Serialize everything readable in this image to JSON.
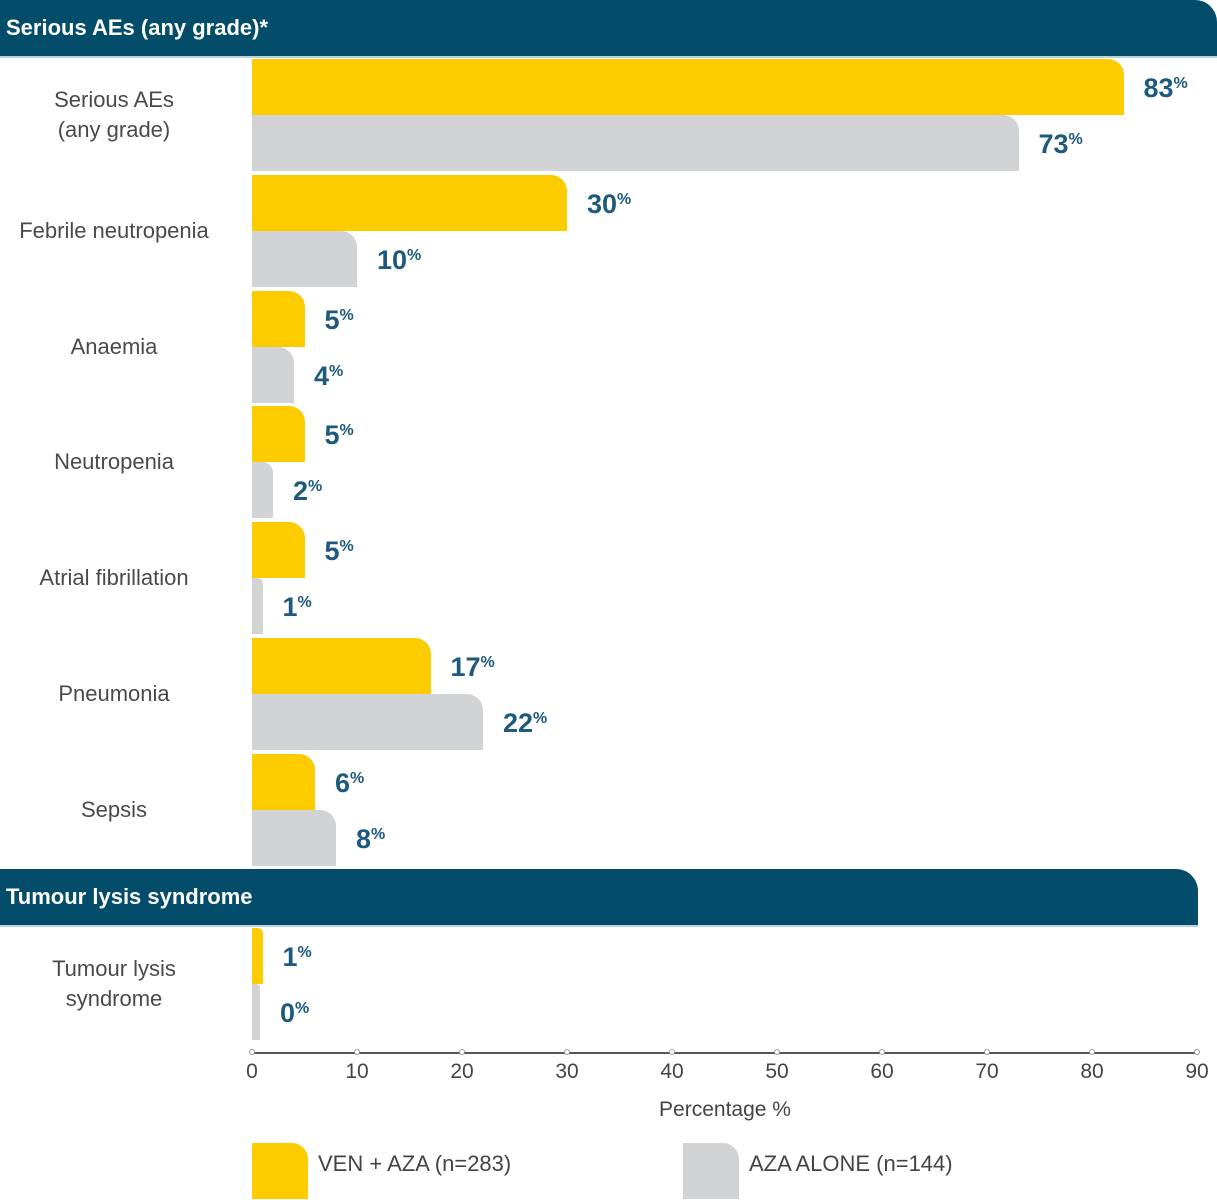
{
  "chart_data": {
    "type": "bar",
    "orientation": "horizontal",
    "xlabel": "Percentage %",
    "xlim": [
      0,
      90
    ],
    "xticks": [
      0,
      10,
      20,
      30,
      40,
      50,
      60,
      70,
      80,
      90
    ],
    "sections": [
      {
        "title": "Serious AEs (any grade)*",
        "categories": [
          "Serious AEs\n(any grade)",
          "Febrile neutropenia",
          "Anaemia",
          "Neutropenia",
          "Atrial fibrillation",
          "Pneumonia",
          "Sepsis"
        ],
        "series": [
          {
            "name": "VEN + AZA (n=283)",
            "values": [
              83,
              30,
              5,
              5,
              5,
              17,
              6
            ]
          },
          {
            "name": "AZA ALONE (n=144)",
            "values": [
              73,
              10,
              4,
              2,
              1,
              22,
              8
            ]
          }
        ]
      },
      {
        "title": "Tumour lysis syndrome",
        "categories": [
          "Tumour lysis\nsyndrome"
        ],
        "series": [
          {
            "name": "VEN + AZA (n=283)",
            "values": [
              1
            ]
          },
          {
            "name": "AZA ALONE (n=144)",
            "values": [
              0
            ]
          }
        ]
      }
    ],
    "legend": [
      "VEN + AZA (n=283)",
      "AZA ALONE (n=144)"
    ],
    "legend_position": "bottom",
    "value_suffix": "%",
    "colors": {
      "ven_aza": "#fccc00",
      "aza_alone": "#d1d3d4",
      "header": "#034d6a",
      "value_label": "#1d5a7d"
    }
  }
}
